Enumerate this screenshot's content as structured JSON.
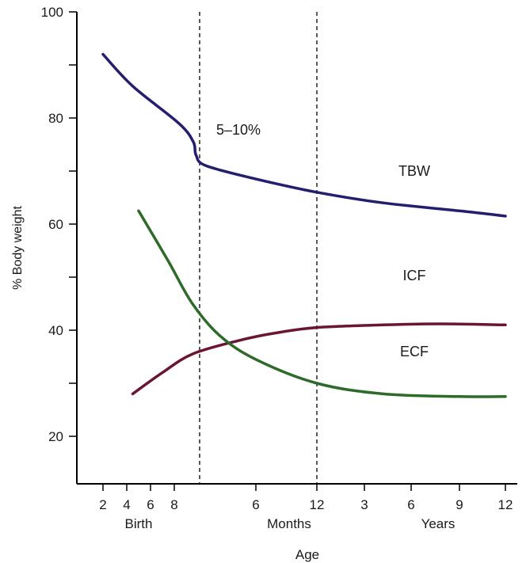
{
  "chart_data": {
    "type": "line",
    "title": "",
    "xlabel": "Age",
    "ylabel": "% Body weight",
    "ylim": [
      10,
      100
    ],
    "y_ticks": [
      20,
      40,
      60,
      80,
      100
    ],
    "y_minor_ticks": [
      30,
      50,
      70,
      90
    ],
    "grid": false,
    "x_ticks": [
      {
        "label": "2",
        "group": "Birth"
      },
      {
        "label": "4",
        "group": "Birth"
      },
      {
        "label": "6",
        "group": "Birth"
      },
      {
        "label": "8",
        "group": "Birth"
      },
      {
        "label": "6",
        "group": "Months"
      },
      {
        "label": "12",
        "group": "Months"
      },
      {
        "label": "3",
        "group": "Years"
      },
      {
        "label": "6",
        "group": "Years"
      },
      {
        "label": "9",
        "group": "Years"
      },
      {
        "label": "12",
        "group": "Years"
      }
    ],
    "x_groups": [
      "Birth",
      "Months",
      "Years"
    ],
    "series": [
      {
        "name": "TBW",
        "color": "#231f6e",
        "points": [
          [
            2,
            92
          ],
          [
            4.5,
            86
          ],
          [
            8.5,
            79
          ],
          [
            10.1,
            75.5
          ],
          [
            10.4,
            73
          ],
          [
            11.5,
            71
          ],
          [
            17,
            68.5
          ],
          [
            23,
            66
          ],
          [
            30,
            64
          ],
          [
            38,
            62.5
          ],
          [
            48,
            61.5
          ]
        ]
      },
      {
        "name": "ICF",
        "color": "#6b1535",
        "points": [
          [
            4.5,
            28
          ],
          [
            7,
            32
          ],
          [
            10,
            35.5
          ],
          [
            15,
            38
          ],
          [
            19,
            39.5
          ],
          [
            23,
            40.5
          ],
          [
            30,
            41
          ],
          [
            36,
            41.2
          ],
          [
            48,
            41
          ]
        ]
      },
      {
        "name": "ECF",
        "color": "#2e6a2a",
        "points": [
          [
            5,
            62.5
          ],
          [
            7.5,
            53
          ],
          [
            10,
            45
          ],
          [
            13,
            39
          ],
          [
            17,
            34.5
          ],
          [
            23,
            30
          ],
          [
            30,
            28
          ],
          [
            38,
            27.5
          ],
          [
            48,
            27.5
          ]
        ]
      }
    ],
    "vertical_markers": [
      {
        "x": 10,
        "style": "dashed"
      },
      {
        "x": 23,
        "style": "dashed"
      }
    ],
    "annotations": [
      {
        "text": "5–10%",
        "x": 12.7,
        "y": 75.5
      }
    ],
    "series_labels": [
      {
        "text": "TBW",
        "x": 34,
        "y": 66.5
      },
      {
        "text": "ICF",
        "x": 34,
        "y": 44.5
      },
      {
        "text": "ECF",
        "x": 34,
        "y": 31
      }
    ]
  }
}
